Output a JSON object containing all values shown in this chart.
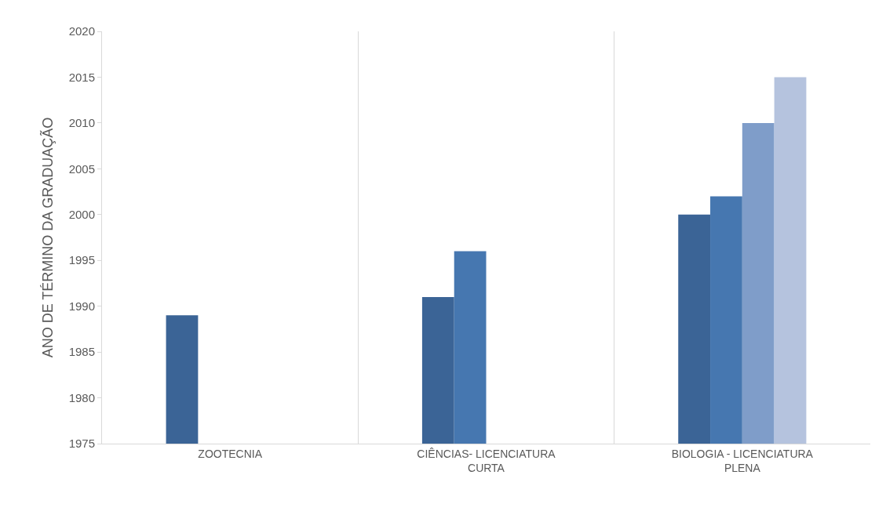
{
  "chart_data": {
    "type": "bar",
    "ylabel": "ANO DE TÉRMINO DA GRADUAÇÃO",
    "categories": [
      "ZOOTECNIA",
      "CIÊNCIAS- LICENCIATURA CURTA",
      "BIOLOGIA - LICENCIATURA PLENA"
    ],
    "series": [
      {
        "color": "#3b6496",
        "values": [
          1989,
          1991,
          2000
        ]
      },
      {
        "color": "#4677b0",
        "values": [
          null,
          1996,
          2002
        ]
      },
      {
        "color": "#7f9dc9",
        "values": [
          null,
          null,
          2010
        ]
      },
      {
        "color": "#b5c3de",
        "values": [
          null,
          null,
          2015
        ]
      }
    ],
    "ylim": [
      1975,
      2020
    ],
    "yticks": [
      1975,
      1980,
      1985,
      1990,
      1995,
      2000,
      2005,
      2010,
      2015,
      2020
    ],
    "grid": "x"
  }
}
